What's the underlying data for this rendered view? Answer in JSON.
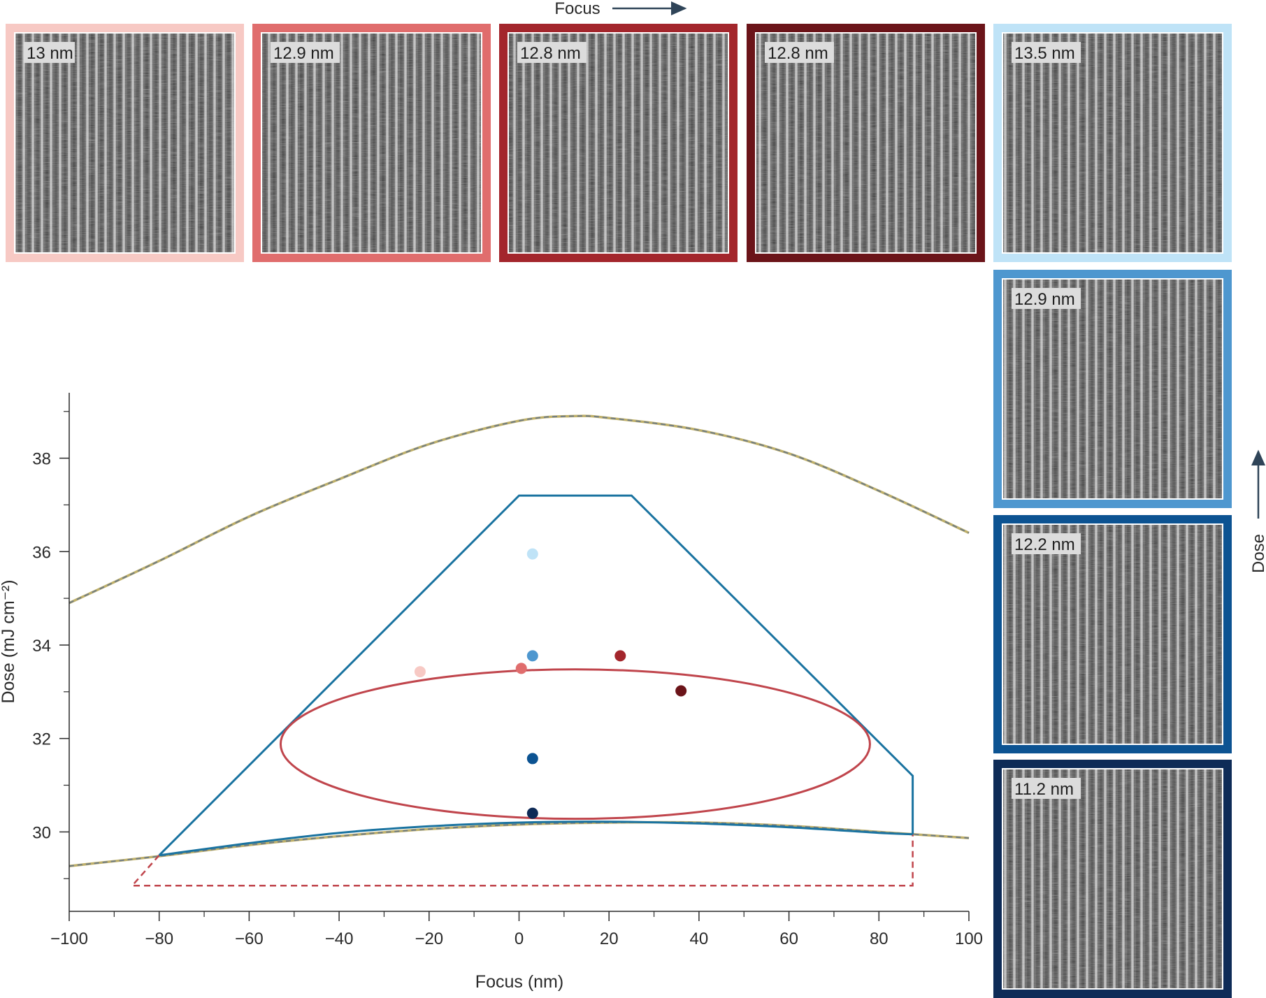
{
  "top_axis_label": "Focus",
  "side_axis_label": "Dose",
  "panels_focus": [
    {
      "label": "13 nm",
      "color": "#f7c9c4"
    },
    {
      "label": "12.9 nm",
      "color": "#e06d6d"
    },
    {
      "label": "12.8 nm",
      "color": "#a3262c"
    },
    {
      "label": "12.8 nm",
      "color": "#6b1419"
    }
  ],
  "panels_dose": [
    {
      "label": "13.5 nm",
      "color": "#bfe3f7"
    },
    {
      "label": "12.9 nm",
      "color": "#4e97cf"
    },
    {
      "label": "12.2 nm",
      "color": "#0c5392"
    },
    {
      "label": "11.2 nm",
      "color": "#0e2b57"
    }
  ],
  "chart_data": {
    "type": "scatter",
    "xlabel": "Focus (nm)",
    "ylabel": "Dose (mJ cm⁻²)",
    "xlim": [
      -100,
      100
    ],
    "ylim": [
      28.3,
      39.4
    ],
    "x_ticks": [
      -100,
      -80,
      -60,
      -40,
      -20,
      0,
      20,
      40,
      60,
      80,
      100
    ],
    "x_tick_labels": [
      "−100",
      "−80",
      "−60",
      "−40",
      "−20",
      "0",
      "20",
      "40",
      "60",
      "80",
      "100"
    ],
    "y_ticks": [
      30,
      32,
      34,
      36,
      38
    ],
    "y_tick_labels": [
      "30",
      "32",
      "34",
      "36",
      "38"
    ],
    "y_minor_ticks": [
      29,
      31,
      33,
      35,
      37,
      39
    ],
    "points": [
      {
        "x": -22,
        "y": 33.43,
        "color": "#f7c9c4"
      },
      {
        "x": 0.5,
        "y": 33.5,
        "color": "#e06d6d"
      },
      {
        "x": 22.5,
        "y": 33.77,
        "color": "#a3262c"
      },
      {
        "x": 36,
        "y": 33.02,
        "color": "#6b1419"
      },
      {
        "x": 3,
        "y": 35.95,
        "color": "#bfe3f7"
      },
      {
        "x": 3,
        "y": 33.77,
        "color": "#4e97cf"
      },
      {
        "x": 3,
        "y": 31.57,
        "color": "#0c5392"
      },
      {
        "x": 3,
        "y": 30.4,
        "color": "#0e2b57"
      }
    ],
    "ellipse": {
      "cx": 12.5,
      "cy": 31.88,
      "rx": 65.5,
      "ry": 1.6,
      "color": "#c0454c"
    },
    "process_window_top": [
      [
        -80,
        29.5
      ],
      [
        0,
        37.2
      ],
      [
        25,
        37.2
      ],
      [
        87.5,
        31.2
      ],
      [
        87.5,
        29.95
      ]
    ],
    "process_window_bottom": [
      [
        -80,
        29.5
      ],
      [
        -60,
        29.76
      ],
      [
        -40,
        29.98
      ],
      [
        -20,
        30.12
      ],
      [
        0,
        30.2
      ],
      [
        20,
        30.22
      ],
      [
        40,
        30.18
      ],
      [
        60,
        30.1
      ],
      [
        80,
        29.98
      ],
      [
        87.5,
        29.95
      ]
    ],
    "process_window_color": "#1a73a0",
    "limit_curve": [
      [
        -100,
        34.9
      ],
      [
        -80,
        35.8
      ],
      [
        -60,
        36.75
      ],
      [
        -40,
        37.55
      ],
      [
        -20,
        38.3
      ],
      [
        0,
        38.8
      ],
      [
        12,
        38.9
      ],
      [
        20,
        38.86
      ],
      [
        40,
        38.6
      ],
      [
        60,
        38.1
      ],
      [
        80,
        37.3
      ],
      [
        100,
        36.4
      ]
    ],
    "floor_curve": [
      [
        -100,
        29.27
      ],
      [
        -80,
        29.48
      ],
      [
        -60,
        29.72
      ],
      [
        -40,
        29.91
      ],
      [
        -20,
        30.06
      ],
      [
        0,
        30.16
      ],
      [
        20,
        30.2
      ],
      [
        40,
        30.2
      ],
      [
        60,
        30.13
      ],
      [
        80,
        30.0
      ],
      [
        100,
        29.87
      ]
    ],
    "limit_color": "#bfb06a",
    "limit_dash_color": "#6f7c84",
    "dashed_box": [
      [
        -80,
        29.5
      ],
      [
        -86,
        28.85
      ],
      [
        87.5,
        28.85
      ],
      [
        87.5,
        29.95
      ]
    ],
    "dashed_box_color": "#c0454c"
  }
}
